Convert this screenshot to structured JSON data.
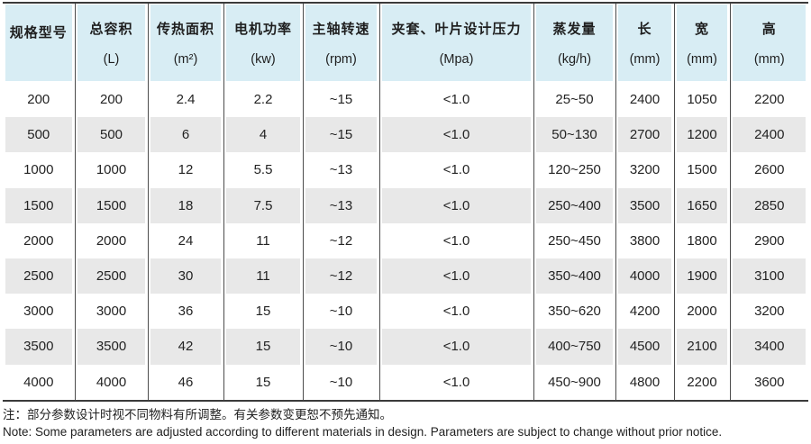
{
  "colors": {
    "header_bg": "#d8edf4",
    "stripe_bg": "#e8e8e8",
    "rule": "#4c4c4c",
    "outer_rule": "#3b3b3b",
    "text": "#1f1f1f"
  },
  "table": {
    "columns": [
      {
        "label": "规格型号",
        "unit": ""
      },
      {
        "label": "总容积",
        "unit": "(L)"
      },
      {
        "label": "传热面积",
        "unit": "(m²)"
      },
      {
        "label": "电机功率",
        "unit": "(kw)"
      },
      {
        "label": "主轴转速",
        "unit": "(rpm)"
      },
      {
        "label": "夹套、叶片设计压力",
        "unit": "(Mpa)"
      },
      {
        "label": "蒸发量",
        "unit": "(kg/h)"
      },
      {
        "label": "长",
        "unit": "(mm)"
      },
      {
        "label": "宽",
        "unit": "(mm)"
      },
      {
        "label": "高",
        "unit": "(mm)"
      }
    ],
    "rows": [
      [
        "200",
        "200",
        "2.4",
        "2.2",
        "~15",
        "<1.0",
        "25~50",
        "2400",
        "1050",
        "2200"
      ],
      [
        "500",
        "500",
        "6",
        "4",
        "~15",
        "<1.0",
        "50~130",
        "2700",
        "1200",
        "2400"
      ],
      [
        "1000",
        "1000",
        "12",
        "5.5",
        "~13",
        "<1.0",
        "120~250",
        "3200",
        "1500",
        "2600"
      ],
      [
        "1500",
        "1500",
        "18",
        "7.5",
        "~13",
        "<1.0",
        "250~400",
        "3500",
        "1650",
        "2850"
      ],
      [
        "2000",
        "2000",
        "24",
        "11",
        "~12",
        "<1.0",
        "250~450",
        "3800",
        "1800",
        "2900"
      ],
      [
        "2500",
        "2500",
        "30",
        "11",
        "~12",
        "<1.0",
        "350~400",
        "4000",
        "1900",
        "3100"
      ],
      [
        "3000",
        "3000",
        "36",
        "15",
        "~10",
        "<1.0",
        "350~620",
        "4200",
        "2000",
        "3200"
      ],
      [
        "3500",
        "3500",
        "42",
        "15",
        "~10",
        "<1.0",
        "400~750",
        "4500",
        "2100",
        "3400"
      ],
      [
        "4000",
        "4000",
        "46",
        "15",
        "~10",
        "<1.0",
        "450~900",
        "4800",
        "2200",
        "3600"
      ]
    ]
  },
  "notes": {
    "zh": "注：部分参数设计时视不同物料有所调整。有关参数变更恕不预先通知。",
    "en": "Note: Some parameters are adjusted according to different materials in design. Parameters are subject to change without prior notice."
  }
}
